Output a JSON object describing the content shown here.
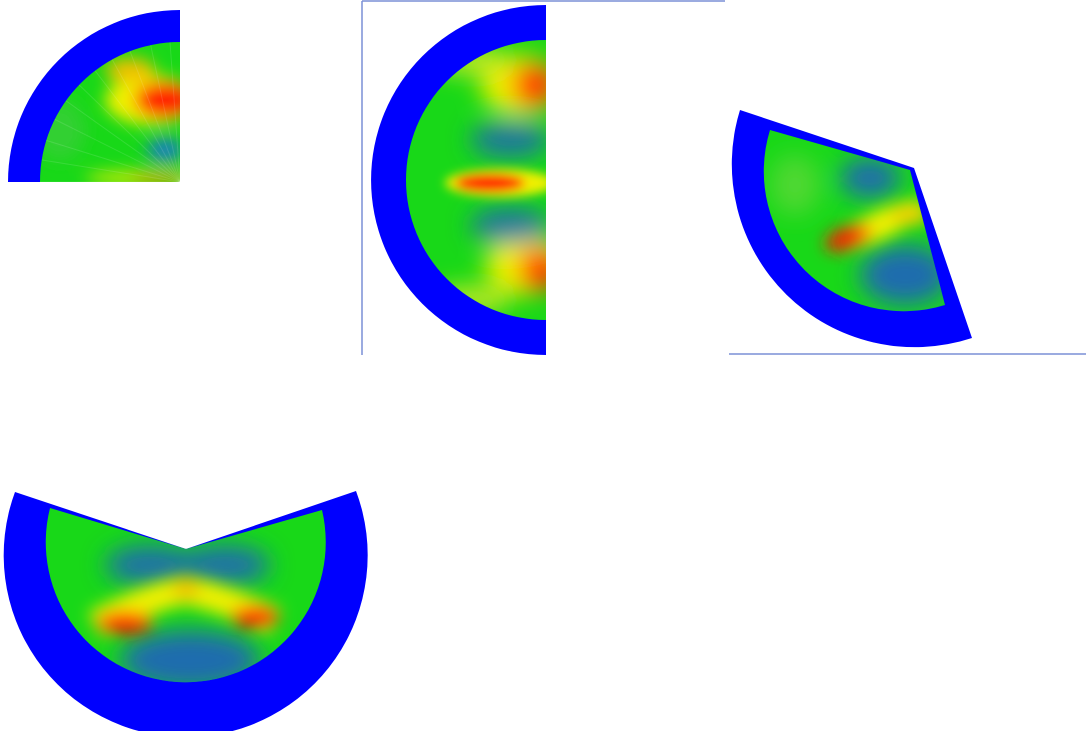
{
  "colors": {
    "background": "#ffffff",
    "outer_ring": "#0000ff",
    "frame_line": "#7a8fd6",
    "field_low": "#1f5fbf",
    "field_mid": "#18d818",
    "field_high_yellow": "#f0f000",
    "field_peak": "#ff1a00"
  },
  "panels": [
    {
      "id": "quarter-sector",
      "shape": "sector",
      "sector_span_deg": 90
    },
    {
      "id": "half-disk",
      "shape": "sector",
      "sector_span_deg": 180
    },
    {
      "id": "rotated-sector",
      "shape": "sector",
      "sector_span_deg": 135
    },
    {
      "id": "notched-disk",
      "shape": "sector",
      "sector_span_deg": 225
    }
  ]
}
